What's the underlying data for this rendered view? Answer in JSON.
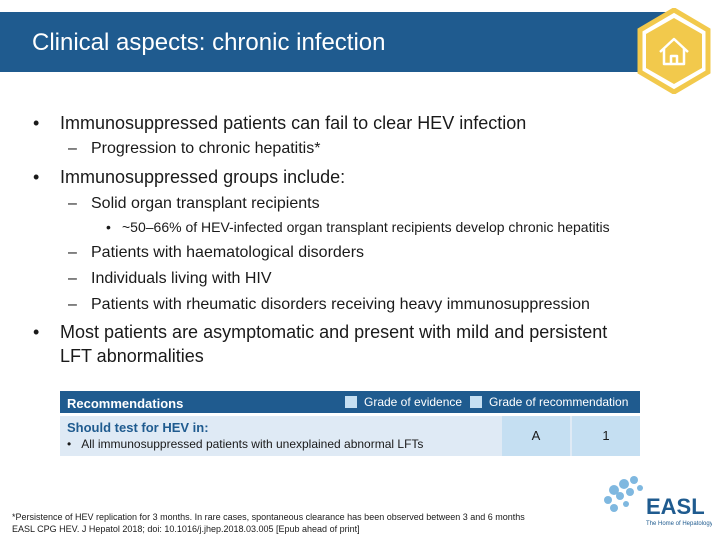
{
  "slide": {
    "title": "Clinical aspects: chronic infection"
  },
  "bullets": [
    {
      "text": "Immunosuppressed patients can fail to clear HEV infection",
      "sub": [
        {
          "text": "Progression to chronic hepatitis*"
        }
      ]
    },
    {
      "text": "Immunosuppressed groups include:",
      "sub": [
        {
          "text": "Solid organ transplant recipients",
          "sub": [
            {
              "text": "~50–66% of HEV-infected organ transplant recipients develop chronic hepatitis"
            }
          ]
        },
        {
          "text": "Patients with haematological disorders"
        },
        {
          "text": "Individuals living with HIV"
        },
        {
          "text": "Patients with rheumatic disorders receiving heavy immunosuppression"
        }
      ]
    },
    {
      "text_line1": "Most patients are asymptomatic and present with mild and persistent",
      "text_line2": "LFT abnormalities"
    }
  ],
  "recommendations": {
    "title": "Recommendations",
    "legend_evidence": "Grade of evidence",
    "legend_recommendation": "Grade of recommendation",
    "question": "Should test for HEV in:",
    "item": "All immunosuppressed patients with unexplained abnormal LFTs",
    "grade_evidence": "A",
    "grade_recommendation": "1"
  },
  "footnote": {
    "line1": "*Persistence of HEV replication for 3 months. In rare cases, spontaneous clearance has been observed between 3 and 6 months",
    "line2": "EASL CPG HEV. J Hepatol 2018; doi: 10.1016/j.jhep.2018.03.005 [Epub ahead of print]"
  },
  "logo": {
    "name": "EASL",
    "tagline": "The Home of Hepatology"
  },
  "colors": {
    "brand_blue": "#1f5b8f",
    "light_blue": "#c5dff2",
    "row_blue": "#dfeaf5",
    "accent_gold": "#f2c94c"
  },
  "icons": {
    "home": "home-icon",
    "bullet": "bullet-dot",
    "dash": "dash"
  }
}
